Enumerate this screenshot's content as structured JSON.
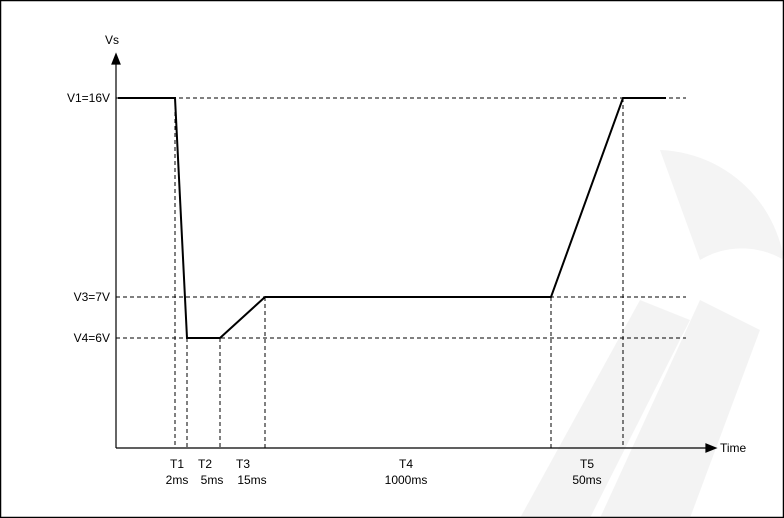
{
  "diagram": {
    "y_axis_label": "Vs",
    "x_axis_label": "Time",
    "levels": [
      {
        "id": "v1",
        "label": "V1=16V",
        "value": 16
      },
      {
        "id": "v3",
        "label": "V3=7V",
        "value": 7
      },
      {
        "id": "v4",
        "label": "V4=6V",
        "value": 6
      }
    ],
    "phases": [
      {
        "id": "t1",
        "name": "T1",
        "duration": "2ms"
      },
      {
        "id": "t2",
        "name": "T2",
        "duration": "5ms"
      },
      {
        "id": "t3",
        "name": "T3",
        "duration": "15ms"
      },
      {
        "id": "t4",
        "name": "T4",
        "duration": "1000ms"
      },
      {
        "id": "t5",
        "name": "T5",
        "duration": "50ms"
      }
    ]
  }
}
